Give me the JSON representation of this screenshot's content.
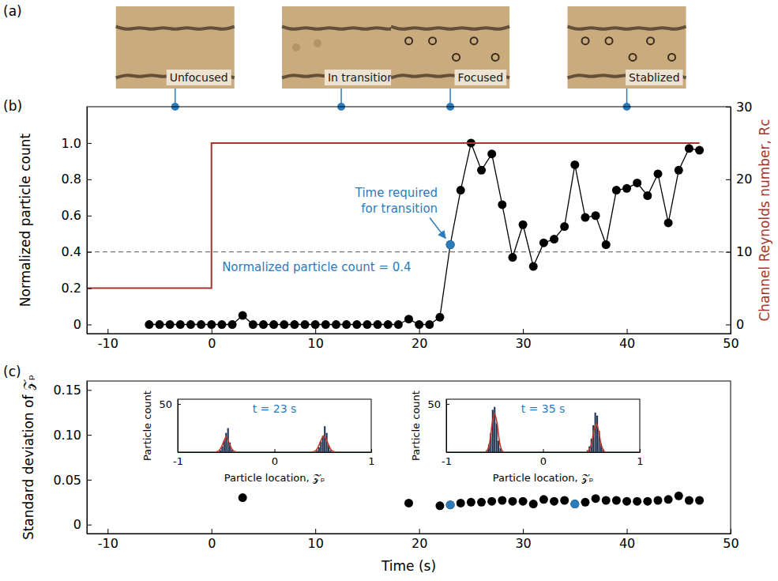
{
  "chart_data": [
    {
      "type": "line",
      "panel": "(b)",
      "snapshot_panel": "(a)",
      "xlim": [
        -12,
        50
      ],
      "xticks": [
        -10,
        0,
        10,
        20,
        30,
        40,
        50
      ],
      "ylabel": "Normalized particle count",
      "ylim": [
        -0.05,
        1.2
      ],
      "yticks": [
        0,
        0.2,
        0.4,
        0.6,
        0.8,
        {
          "value": 1,
          "label": "1.0"
        }
      ],
      "y2label": "Channel Reynolds number, Rc",
      "y2lim": [
        -1.25,
        30
      ],
      "y2ticks": [
        0,
        10,
        20,
        30
      ],
      "series": [
        {
          "type": "line",
          "color": "#000000",
          "marker": "circle",
          "line_style": "solid",
          "x": [
            -6,
            -5,
            -4,
            -3,
            -2,
            -1,
            0,
            1,
            2,
            3,
            4,
            5,
            6,
            7,
            8,
            9,
            10,
            11,
            12,
            13,
            14,
            15,
            16,
            17,
            18,
            19,
            20,
            21,
            22,
            23,
            24,
            25,
            26,
            27,
            28,
            29,
            30,
            31,
            32,
            33,
            34,
            35,
            36,
            37,
            38,
            39,
            40,
            41,
            42,
            43,
            44,
            45,
            46,
            47
          ],
          "values": [
            0,
            0,
            0,
            0,
            0,
            0,
            0,
            0,
            0,
            0.05,
            0,
            0,
            0,
            0,
            0,
            0,
            0,
            0,
            0,
            0,
            0,
            0,
            0,
            0,
            0,
            0.03,
            0,
            0,
            0.04,
            0.44,
            0.74,
            1.0,
            0.85,
            0.94,
            0.66,
            0.37,
            0.55,
            0.32,
            0.45,
            0.47,
            0.54,
            0.88,
            0.59,
            0.6,
            0.44,
            0.74,
            0.75,
            0.78,
            0.71,
            0.83,
            0.56,
            0.85,
            0.97,
            0.96
          ]
        },
        {
          "type": "line",
          "color": "#a3362e",
          "marker": "none",
          "line_style": "solid",
          "axis": "y2",
          "x": [
            -12,
            0,
            0,
            47
          ],
          "values": [
            5,
            5,
            25,
            25
          ]
        },
        {
          "type": "scatter",
          "color": "#2b7bbb",
          "marker": "circle",
          "line_style": "none",
          "x": [
            23
          ],
          "values": [
            0.44
          ]
        }
      ],
      "reference_lines": [
        {
          "y": 0.4,
          "line_style": "dashed",
          "text": "Normalized particle count = 0.4",
          "color": "#2b7bbb"
        }
      ],
      "annotations": [
        {
          "text": "Time required for transition",
          "x": 23,
          "y": 0.44,
          "color": "#2b7bbb"
        }
      ],
      "snapshots": {
        "labels": [
          "Unfocused",
          "In transition",
          "Focused",
          "Stablized"
        ],
        "x": [
          -3.5,
          12.5,
          23,
          40
        ],
        "color": "#2b7bbb"
      }
    },
    {
      "type": "scatter",
      "panel": "(c)",
      "xlabel": "Time (s)",
      "ylabel": "Standard deviation of 𝒵ₚ",
      "xlim": [
        -12,
        50
      ],
      "xticks": [
        -10,
        0,
        10,
        20,
        30,
        40,
        50
      ],
      "ylim": [
        -0.01,
        0.16
      ],
      "yticks": [
        0,
        0.05,
        {
          "value": 0.1,
          "label": "0.10"
        },
        0.15
      ],
      "series": [
        {
          "type": "scatter",
          "color": "#000000",
          "marker": "circle",
          "line_style": "none",
          "x": [
            3,
            19,
            22,
            23,
            24,
            25,
            26,
            27,
            28,
            29,
            30,
            31,
            32,
            33,
            34,
            35,
            36,
            37,
            38,
            39,
            40,
            41,
            42,
            43,
            44,
            45,
            46,
            47
          ],
          "values": [
            0.03,
            0.024,
            0.021,
            0.022,
            0.024,
            0.025,
            0.025,
            0.026,
            0.027,
            0.026,
            0.026,
            0.023,
            0.028,
            0.026,
            0.027,
            0.023,
            0.025,
            0.029,
            0.027,
            0.027,
            0.026,
            0.026,
            0.026,
            0.027,
            0.028,
            0.032,
            0.027,
            0.027
          ]
        },
        {
          "type": "scatter",
          "color": "#2b7bbb",
          "marker": "circle",
          "line_style": "none",
          "x": [
            23,
            35
          ],
          "values": [
            0.022,
            0.023
          ]
        }
      ],
      "insets": [
        {
          "type": "bar",
          "title": "t = 23 s",
          "xlabel": "Particle location, 𝒵ₚ",
          "ylabel": "Particle count",
          "xlim": [
            -1,
            1
          ],
          "xticks": [
            -1,
            0,
            1
          ],
          "ylim": [
            0,
            55
          ],
          "yticks": [
            50
          ],
          "color": "#1f3350",
          "x": [
            -0.56,
            -0.54,
            -0.52,
            -0.5,
            -0.48,
            -0.46,
            -0.44,
            0.44,
            0.46,
            0.48,
            0.5,
            0.52,
            0.54,
            0.56,
            0.58
          ],
          "values": [
            2,
            6,
            12,
            20,
            25,
            10,
            3,
            2,
            5,
            11,
            17,
            27,
            20,
            7,
            2
          ],
          "fit": {
            "color": "#c0392b",
            "x": [
              -1,
              -0.62,
              -0.58,
              -0.55,
              -0.52,
              -0.5,
              -0.48,
              -0.45,
              -0.42,
              -0.38,
              0.38,
              0.42,
              0.45,
              0.48,
              0.51,
              0.54,
              0.57,
              0.6,
              0.64,
              1
            ],
            "values": [
              0,
              0,
              1,
              5,
              12,
              16,
              12,
              5,
              1,
              0,
              0,
              1,
              5,
              12,
              17,
              12,
              5,
              1,
              0,
              0
            ]
          }
        },
        {
          "type": "bar",
          "title": "t = 35 s",
          "xlabel": "Particle location, 𝒵ₚ",
          "ylabel": "Particle count",
          "xlim": [
            -1,
            1
          ],
          "xticks": [
            -1,
            0,
            1
          ],
          "ylim": [
            0,
            55
          ],
          "yticks": [
            50
          ],
          "color": "#1f3350",
          "x": [
            -0.58,
            -0.56,
            -0.54,
            -0.52,
            -0.5,
            -0.48,
            -0.46,
            -0.44,
            -0.42,
            0.46,
            0.48,
            0.5,
            0.52,
            0.54,
            0.56,
            0.58,
            0.6,
            0.62
          ],
          "values": [
            2,
            8,
            20,
            44,
            47,
            30,
            12,
            4,
            1,
            2,
            6,
            14,
            28,
            41,
            38,
            22,
            9,
            3
          ],
          "fit": {
            "color": "#c0392b",
            "x": [
              -1,
              -0.6,
              -0.575,
              -0.55,
              -0.525,
              -0.5,
              -0.475,
              -0.45,
              -0.425,
              -0.4,
              0.45,
              0.475,
              0.5,
              0.525,
              0.55,
              0.575,
              0.6,
              0.625,
              0.65,
              1
            ],
            "values": [
              0,
              0,
              2,
              11,
              30,
              40,
              30,
              11,
              2,
              0,
              0,
              2,
              8,
              22,
              30,
              22,
              8,
              2,
              0,
              0
            ]
          }
        }
      ]
    }
  ]
}
